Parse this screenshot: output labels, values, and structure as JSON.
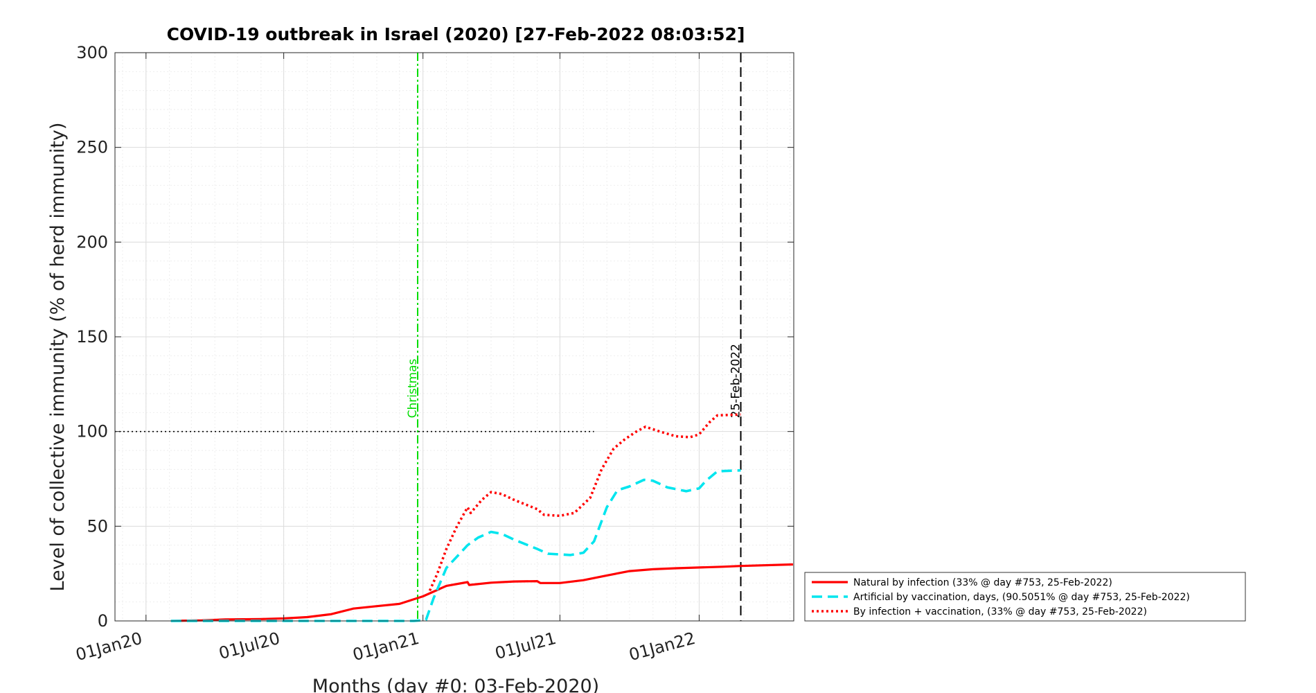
{
  "chart_data": {
    "type": "line",
    "title": "COVID-19 outbreak in Israel (2020) [27-Feb-2022 08:03:52]",
    "xlabel": "Months (day #0: 03-Feb-2020)",
    "ylabel": "Level of collective immunity (% of herd immunity)",
    "x_unit": "date",
    "xlim": [
      "2019-11-21",
      "2022-05-06"
    ],
    "ylim": [
      0,
      300
    ],
    "x_ticks": [
      {
        "label": "01Jan20",
        "date": "2020-01-01"
      },
      {
        "label": "01Jul20",
        "date": "2020-07-01"
      },
      {
        "label": "01Jan21",
        "date": "2021-01-01"
      },
      {
        "label": "01Jul21",
        "date": "2021-07-01"
      },
      {
        "label": "01Jan22",
        "date": "2022-01-01"
      }
    ],
    "y_ticks": [
      0,
      50,
      100,
      150,
      200,
      250,
      300
    ],
    "grid": true,
    "legend_position": "outside-bottom-right",
    "reference_lines": [
      {
        "type": "vertical",
        "date": "2020-12-25",
        "label": "Christmas",
        "color": "#00dd00",
        "style": "dash-dot"
      },
      {
        "type": "vertical",
        "date": "2022-02-25",
        "label": "25-Feb-2022",
        "color": "#000000",
        "style": "dashed"
      },
      {
        "type": "horizontal",
        "y": 100,
        "x_from": "2019-11-21",
        "x_to": "2021-08-15",
        "color": "#000000",
        "style": "dotted"
      }
    ],
    "series": [
      {
        "name": "Natural by infection (33% @ day #753, 25-Feb-2022)",
        "color": "#ff0000",
        "style": "solid",
        "points": [
          [
            "2020-02-03",
            0
          ],
          [
            "2020-03-15",
            0.3
          ],
          [
            "2020-04-15",
            0.8
          ],
          [
            "2020-06-01",
            1.0
          ],
          [
            "2020-07-01",
            1.3
          ],
          [
            "2020-08-01",
            2.0
          ],
          [
            "2020-09-01",
            3.5
          ],
          [
            "2020-10-01",
            6.5
          ],
          [
            "2020-11-01",
            7.8
          ],
          [
            "2020-12-01",
            9.0
          ],
          [
            "2021-01-01",
            13.0
          ],
          [
            "2021-02-01",
            18.5
          ],
          [
            "2021-03-01",
            20.5
          ],
          [
            "2021-03-03",
            19.0
          ],
          [
            "2021-04-01",
            20.2
          ],
          [
            "2021-05-01",
            20.8
          ],
          [
            "2021-06-01",
            21.0
          ],
          [
            "2021-06-05",
            20.0
          ],
          [
            "2021-07-01",
            20.0
          ],
          [
            "2021-08-01",
            21.5
          ],
          [
            "2021-09-01",
            24.0
          ],
          [
            "2021-10-01",
            26.3
          ],
          [
            "2021-11-01",
            27.3
          ],
          [
            "2021-12-01",
            27.8
          ],
          [
            "2022-01-01",
            28.2
          ],
          [
            "2022-02-01",
            28.6
          ],
          [
            "2022-02-25",
            29.0
          ],
          [
            "2022-05-05",
            29.8
          ]
        ]
      },
      {
        "name": "Artificial by vaccination, days, (90.5051% @ day #753, 25-Feb-2022)",
        "color": "#00e5ee",
        "style": "dashed",
        "points": [
          [
            "2020-02-03",
            0
          ],
          [
            "2020-12-20",
            0
          ],
          [
            "2021-01-05",
            0.5
          ],
          [
            "2021-01-15",
            12
          ],
          [
            "2021-02-01",
            28
          ],
          [
            "2021-03-01",
            40
          ],
          [
            "2021-03-15",
            44
          ],
          [
            "2021-04-01",
            47
          ],
          [
            "2021-04-15",
            46
          ],
          [
            "2021-05-01",
            43
          ],
          [
            "2021-06-01",
            38
          ],
          [
            "2021-06-15",
            35.5
          ],
          [
            "2021-07-15",
            34.8
          ],
          [
            "2021-08-01",
            36
          ],
          [
            "2021-08-15",
            42
          ],
          [
            "2021-09-01",
            60
          ],
          [
            "2021-09-15",
            69
          ],
          [
            "2021-10-01",
            71
          ],
          [
            "2021-10-20",
            74.5
          ],
          [
            "2021-11-01",
            74
          ],
          [
            "2021-11-20",
            70.5
          ],
          [
            "2021-12-15",
            68.5
          ],
          [
            "2022-01-01",
            70
          ],
          [
            "2022-01-10",
            74
          ],
          [
            "2022-01-25",
            79
          ],
          [
            "2022-02-25",
            79.5
          ]
        ]
      },
      {
        "name": "By infection + vaccination, (33% @ day #753, 25-Feb-2022)",
        "color": "#ff0000",
        "style": "dotted",
        "points": [
          [
            "2021-01-10",
            16
          ],
          [
            "2021-01-20",
            25
          ],
          [
            "2021-02-01",
            38
          ],
          [
            "2021-02-15",
            50
          ],
          [
            "2021-03-01",
            60
          ],
          [
            "2021-03-05",
            57
          ],
          [
            "2021-03-20",
            64
          ],
          [
            "2021-04-01",
            68
          ],
          [
            "2021-04-15",
            67
          ],
          [
            "2021-05-01",
            64
          ],
          [
            "2021-06-01",
            59
          ],
          [
            "2021-06-10",
            56
          ],
          [
            "2021-07-01",
            55.5
          ],
          [
            "2021-07-20",
            57
          ],
          [
            "2021-08-10",
            65
          ],
          [
            "2021-08-25",
            80
          ],
          [
            "2021-09-10",
            91
          ],
          [
            "2021-09-25",
            96
          ],
          [
            "2021-10-10",
            100
          ],
          [
            "2021-10-22",
            102.5
          ],
          [
            "2021-11-10",
            100
          ],
          [
            "2021-12-01",
            97.5
          ],
          [
            "2021-12-20",
            97
          ],
          [
            "2022-01-01",
            98.5
          ],
          [
            "2022-01-15",
            105
          ],
          [
            "2022-01-25",
            108.5
          ],
          [
            "2022-02-25",
            109
          ]
        ]
      }
    ]
  }
}
